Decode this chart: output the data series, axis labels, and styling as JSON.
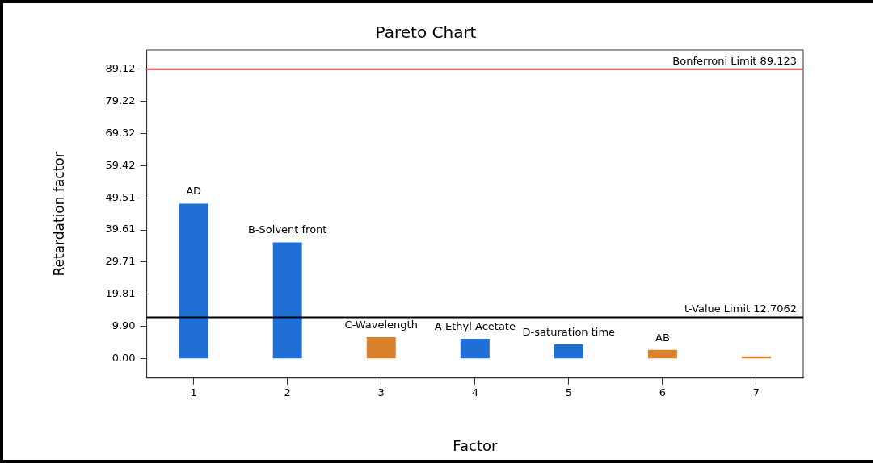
{
  "chart_data": {
    "type": "bar",
    "title": "Pareto Chart",
    "xlabel": "Factor",
    "ylabel": "Retardation factor",
    "categories": [
      "1",
      "2",
      "3",
      "4",
      "5",
      "6",
      "7"
    ],
    "values": [
      47.7,
      35.8,
      6.6,
      6.1,
      4.4,
      2.7,
      0.7
    ],
    "colors": [
      "#1f6fd6",
      "#1f6fd6",
      "#d9822b",
      "#1f6fd6",
      "#1f6fd6",
      "#d9822b",
      "#d9822b"
    ],
    "ylim": [
      -6,
      95
    ],
    "yticks": [
      {
        "value": 0,
        "label": "0.00"
      },
      {
        "value": 9.9,
        "label": "9.90"
      },
      19.81,
      29.71,
      39.61,
      49.51,
      59.42,
      69.32,
      79.22,
      89.12
    ],
    "grid": false,
    "ref_lines": [
      {
        "axis": "y",
        "value": 89.123,
        "label": "Bonferroni Limit 89.123",
        "color": "#e8424a"
      },
      {
        "axis": "y",
        "value": 12.7062,
        "label": "t-Value Limit 12.7062",
        "color": "#000000"
      }
    ],
    "annotations": [
      {
        "text": "AD",
        "x": "1",
        "y": 47.7
      },
      {
        "text": "B-Solvent front",
        "x": "2",
        "y": 35.8
      },
      {
        "text": "C-Wavelength",
        "x": "3",
        "y": 6.6
      },
      {
        "text": "A-Ethyl Acetate",
        "x": "4",
        "y": 6.1
      },
      {
        "text": "D-saturation time",
        "x": "5",
        "y": 4.4
      },
      {
        "text": "AB",
        "x": "6",
        "y": 2.7
      }
    ]
  }
}
